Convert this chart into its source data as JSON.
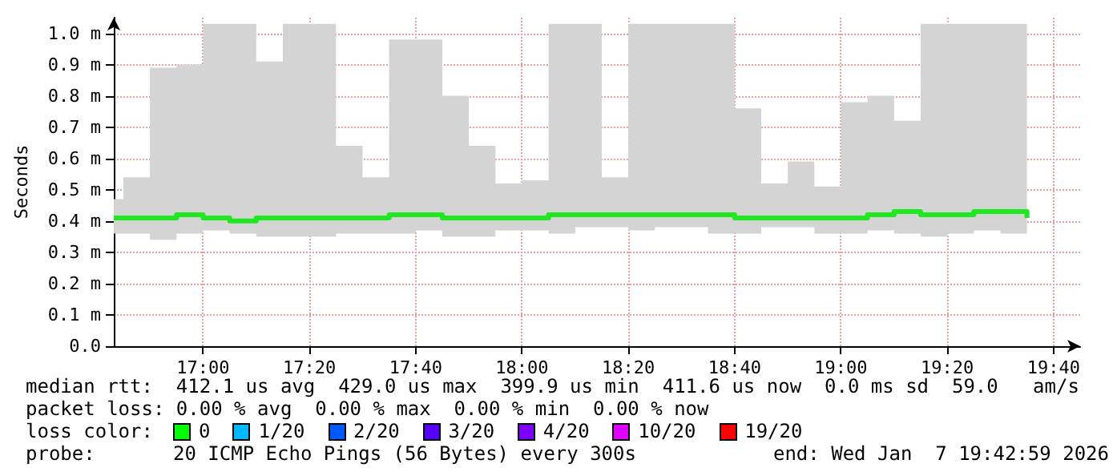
{
  "chart_data": {
    "type": "step",
    "ylabel": "Seconds",
    "x": [
      16.72,
      16.75,
      16.8333,
      16.9167,
      17.0,
      17.0833,
      17.1667,
      17.25,
      17.3333,
      17.4167,
      17.5,
      17.5833,
      17.6667,
      17.75,
      17.8333,
      17.9167,
      18.0,
      18.0833,
      18.1667,
      18.25,
      18.3333,
      18.4167,
      18.5,
      18.5833,
      18.6667,
      18.75,
      18.8333,
      18.9167,
      19.0,
      19.0833,
      19.1667,
      19.25,
      19.3333,
      19.4167,
      19.5,
      19.5833
    ],
    "series": [
      {
        "color": "#20e820",
        "values": [
          0.41,
          0.41,
          0.41,
          0.42,
          0.41,
          0.4,
          0.41,
          0.41,
          0.41,
          0.41,
          0.41,
          0.42,
          0.42,
          0.41,
          0.41,
          0.41,
          0.41,
          0.42,
          0.42,
          0.42,
          0.42,
          0.42,
          0.42,
          0.42,
          0.41,
          0.41,
          0.41,
          0.41,
          0.41,
          0.42,
          0.43,
          0.42,
          0.42,
          0.43,
          0.43,
          0.41
        ],
        "lower": [
          0.36,
          0.36,
          0.34,
          0.36,
          0.37,
          0.36,
          0.35,
          0.35,
          0.35,
          0.36,
          0.36,
          0.36,
          0.37,
          0.35,
          0.35,
          0.37,
          0.37,
          0.36,
          0.38,
          0.38,
          0.37,
          0.38,
          0.38,
          0.36,
          0.36,
          0.38,
          0.38,
          0.36,
          0.36,
          0.37,
          0.36,
          0.35,
          0.36,
          0.37,
          0.36,
          0.36
        ],
        "upper": [
          0.47,
          0.54,
          0.89,
          0.9,
          1.03,
          1.03,
          0.91,
          1.03,
          1.03,
          0.64,
          0.54,
          0.98,
          0.98,
          0.8,
          0.64,
          0.52,
          0.53,
          1.03,
          1.03,
          0.54,
          1.03,
          1.03,
          1.03,
          1.03,
          0.76,
          0.52,
          0.59,
          0.51,
          0.78,
          0.8,
          0.72,
          1.03,
          1.03,
          1.03,
          1.03,
          0.65
        ]
      }
    ],
    "xlim": [
      16.72,
      19.75
    ],
    "xticks": [
      {
        "value": 17.0,
        "label": "17:00"
      },
      {
        "value": 17.3333,
        "label": "17:20"
      },
      {
        "value": 17.6667,
        "label": "17:40"
      },
      {
        "value": 18.0,
        "label": "18:00"
      },
      {
        "value": 18.3333,
        "label": "18:20"
      },
      {
        "value": 18.6667,
        "label": "18:40"
      },
      {
        "value": 19.0,
        "label": "19:00"
      },
      {
        "value": 19.3333,
        "label": "19:20"
      },
      {
        "value": 19.6667,
        "label": "19:40"
      }
    ],
    "ylim": [
      0,
      1.05
    ],
    "yticks": [
      {
        "value": 0,
        "label": "0.0"
      },
      {
        "value": 0.1,
        "label": "0.1 m"
      },
      {
        "value": 0.2,
        "label": "0.2 m"
      },
      {
        "value": 0.3,
        "label": "0.3 m"
      },
      {
        "value": 0.4,
        "label": "0.4 m"
      },
      {
        "value": 0.5,
        "label": "0.5 m"
      },
      {
        "value": 0.6,
        "label": "0.6 m"
      },
      {
        "value": 0.7,
        "label": "0.7 m"
      },
      {
        "value": 0.8,
        "label": "0.8 m"
      },
      {
        "value": 0.9,
        "label": "0.9 m"
      },
      {
        "value": 1.0,
        "label": "1.0 m"
      }
    ],
    "grid": true,
    "marker": "none",
    "line_style": "solid",
    "annotations": [
      "median rtt:  412.1 us avg  429.0 us max  399.9 us min  411.6 us now  0.0 ms sd  59.0   am/s",
      "packet loss: 0.00 % avg  0.00 % max  0.00 % min  0.00 % now",
      "loss color:",
      "0",
      "1/20",
      "2/20",
      "3/20",
      "4/20",
      "10/20",
      "19/20",
      "probe:",
      "20 ICMP Echo Pings (56 Bytes) every 300s",
      "end: Wed Jan  7 19:42:59 2026"
    ]
  }
}
